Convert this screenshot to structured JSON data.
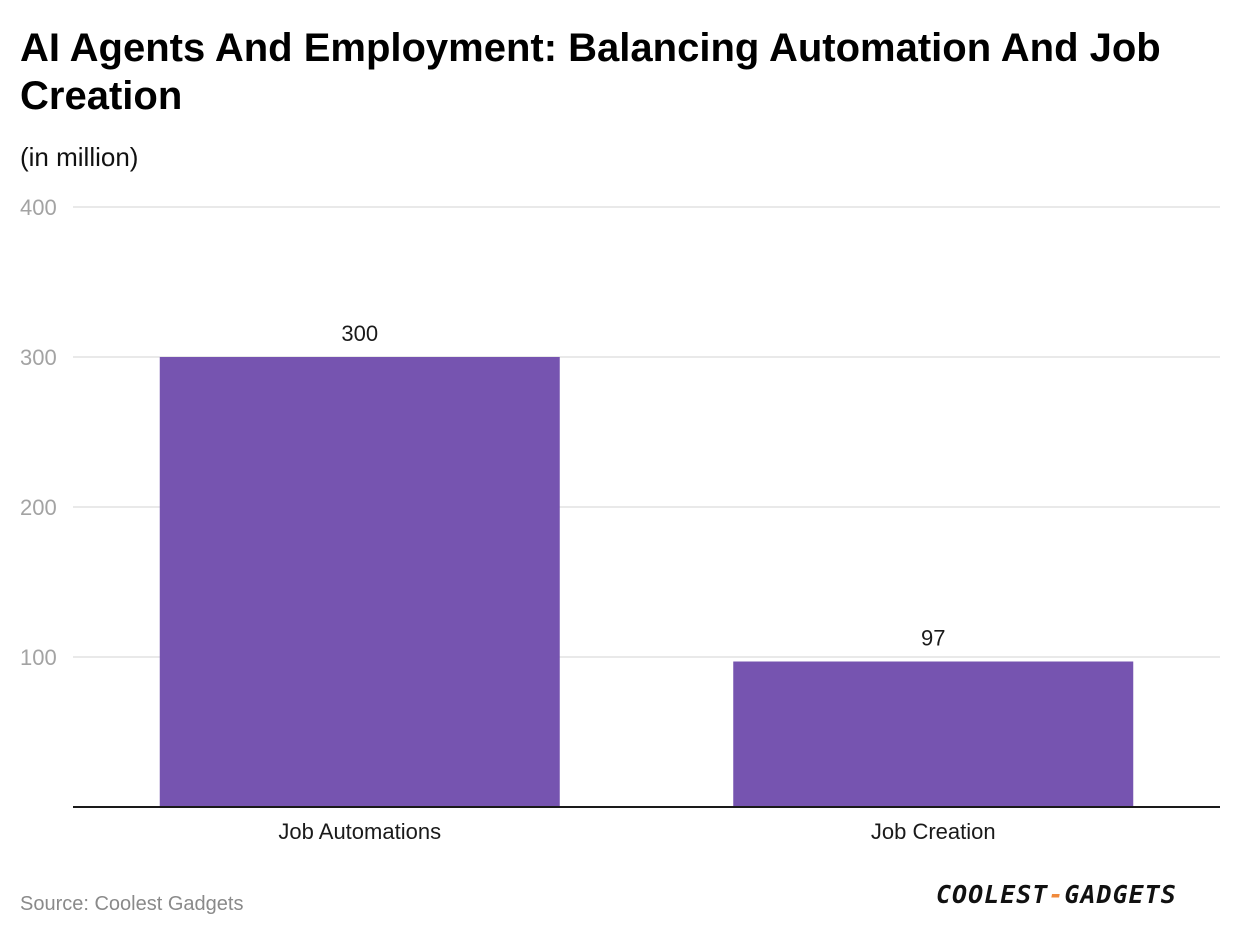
{
  "chart_data": {
    "type": "bar",
    "title": "AI Agents And Employment: Balancing Automation And Job Creation",
    "subtitle": "(in million)",
    "categories": [
      "Job Automations",
      "Job Creation"
    ],
    "values": [
      300,
      97
    ],
    "data_labels": [
      "300",
      "97"
    ],
    "xlabel": "",
    "ylabel": "",
    "ylim": [
      0,
      400
    ],
    "yticks": [
      100,
      200,
      300,
      400
    ],
    "ytick_labels": [
      "100",
      "200",
      "300",
      "400"
    ],
    "grid": true,
    "legend": "none",
    "bar_color": "#7654b0"
  },
  "source": "Source: Coolest Gadgets",
  "logo": {
    "left": "COOLEST",
    "dash": "-",
    "right": "GADGETS"
  },
  "colors": {
    "bar": "#7654b0",
    "gridline": "#e2e2e2",
    "axis": "#1a1a1a",
    "logo_accent": "#f08a3c"
  }
}
